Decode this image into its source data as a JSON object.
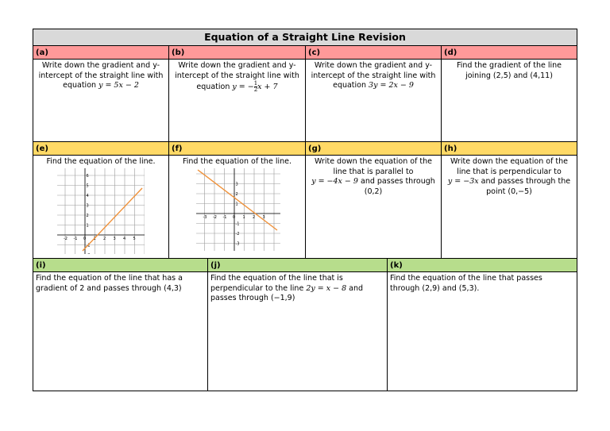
{
  "title": "Equation of a Straight Line Revision",
  "colors": {
    "red_header": "#ff9999",
    "yellow_header": "#ffd966",
    "green_header": "#b7dd8c",
    "title_bg": "#d9d9d9",
    "line": "#f0923a"
  },
  "questions": {
    "a": {
      "label": "(a)",
      "text": "Write down the gradient and y-intercept of the straight line with equation",
      "eq": "y = 5x − 2"
    },
    "b": {
      "label": "(b)",
      "text": "Write down the gradient and y-intercept of the straight line with equation",
      "eq_pre": "y = −",
      "frac_num": "1",
      "frac_den": "2",
      "eq_post": "x + 7"
    },
    "c": {
      "label": "(c)",
      "text": "Write down the gradient and y-intercept of the straight line with equation",
      "eq": "3y = 2x − 9"
    },
    "d": {
      "label": "(d)",
      "text": "Find the gradient of the line joining",
      "points": "(2,5) and (4,11)"
    },
    "e": {
      "label": "(e)",
      "text": "Find the equation of the line."
    },
    "f": {
      "label": "(f)",
      "text": "Find the equation of the line."
    },
    "g": {
      "label": "(g)",
      "text1": "Write down the equation of the line that is parallel to",
      "eq": "y = −4x − 9",
      "text2": "and passes through",
      "point": "(0,2)"
    },
    "h": {
      "label": "(h)",
      "text1": "Write down the equation of the line that is perpendicular to",
      "eq": "y = −3x",
      "text2": "and passes through the point",
      "point": "(0,−5)"
    },
    "i": {
      "label": "(i)",
      "text": "Find the equation of the line that has a gradient of 2 and passes through",
      "point": "(4,3)"
    },
    "j": {
      "label": "(j)",
      "text1": "Find the equation of the line that is perpendicular to the line",
      "eq": "2y = x − 8",
      "text2": "and passes through",
      "point": "(−1,9)"
    },
    "k": {
      "label": "(k)",
      "text": "Find the equation of the line that passes through",
      "points": "(2,9) and (5,3)."
    }
  },
  "graph_e": {
    "x_ticks": [
      "-2",
      "-1",
      "0",
      "1",
      "2",
      "3",
      "4",
      "5"
    ],
    "y_ticks": [
      "6",
      "5",
      "4",
      "3",
      "2",
      "1",
      "-1",
      "-2"
    ]
  },
  "graph_f": {
    "x_ticks": [
      "-3",
      "-2",
      "-1",
      "0",
      "1",
      "2",
      "3"
    ],
    "y_ticks": [
      "3",
      "2",
      "1",
      "-1",
      "-2",
      "-3"
    ]
  }
}
